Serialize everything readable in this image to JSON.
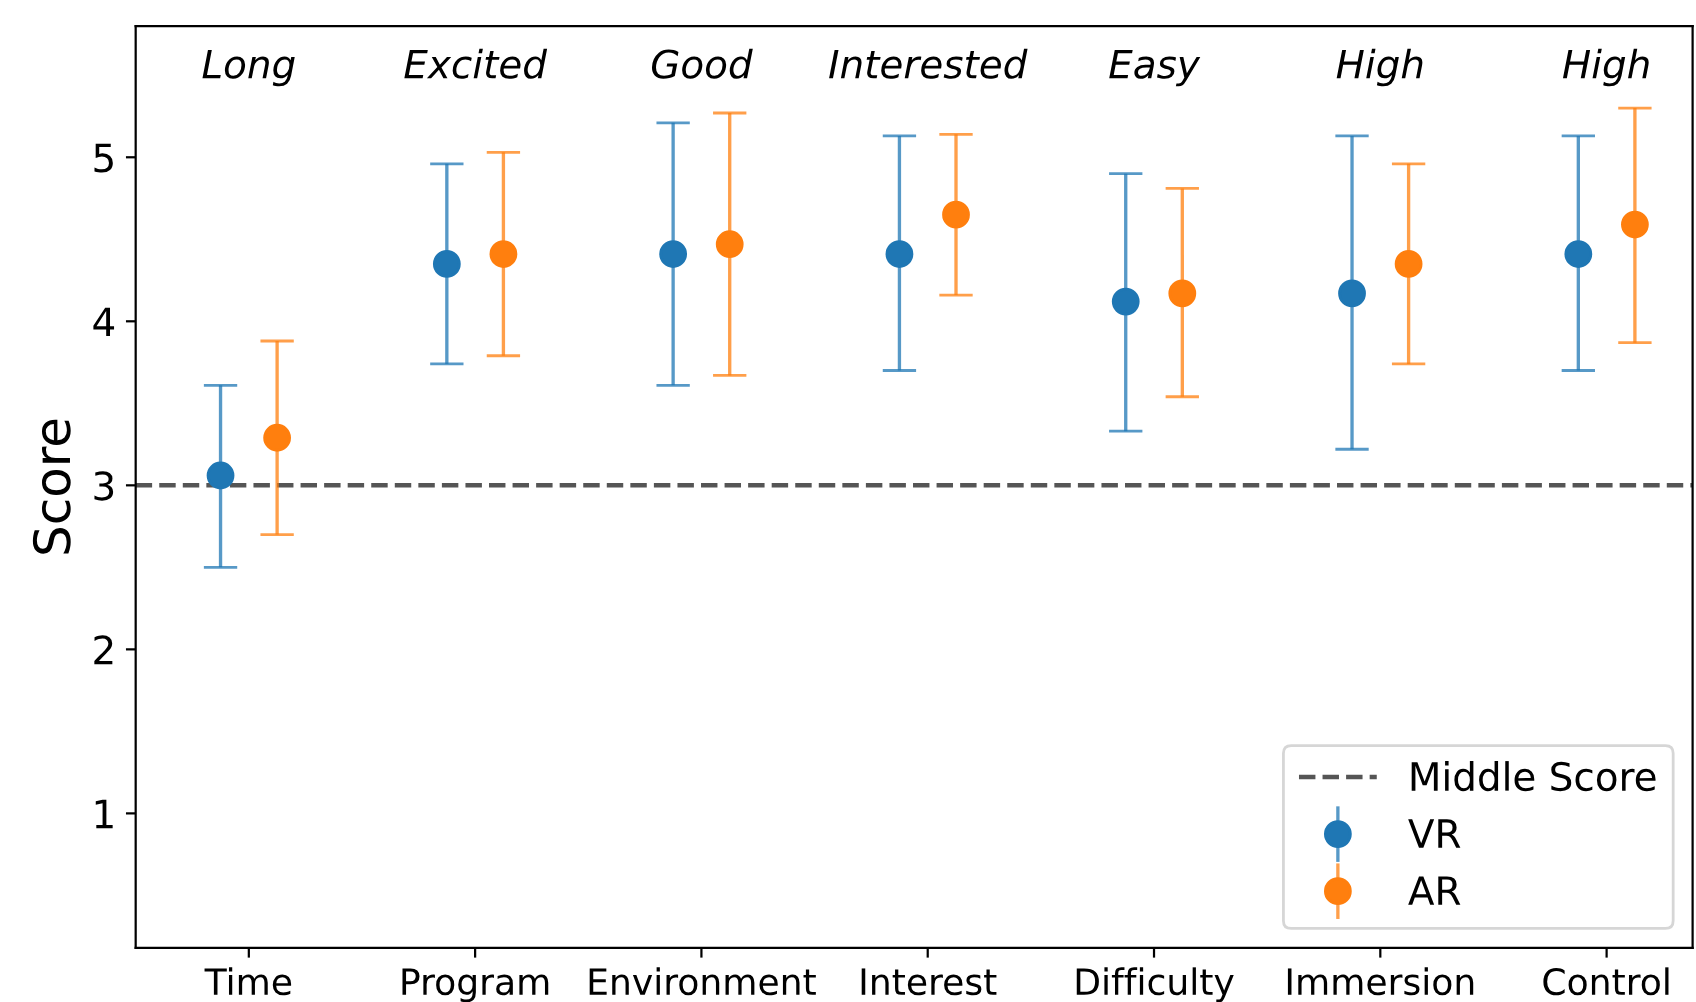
{
  "chart_data": {
    "type": "scatter",
    "ylabel": "Score",
    "categories": [
      "Time",
      "Program",
      "Environment",
      "Interest",
      "Difficulty",
      "Immersion",
      "Control"
    ],
    "series": [
      {
        "name": "VR",
        "color": "#1f77b4",
        "values": [
          3.06,
          4.35,
          4.41,
          4.41,
          4.12,
          4.17,
          4.41
        ],
        "errors": [
          [
            2.5,
            3.61
          ],
          [
            3.74,
            4.96
          ],
          [
            3.61,
            5.21
          ],
          [
            3.7,
            5.13
          ],
          [
            3.33,
            4.9
          ],
          [
            3.22,
            5.13
          ],
          [
            3.7,
            5.13
          ]
        ]
      },
      {
        "name": "AR",
        "color": "#ff7f0e",
        "values": [
          3.29,
          4.41,
          4.47,
          4.65,
          4.17,
          4.35,
          4.59
        ],
        "errors": [
          [
            2.7,
            3.88
          ],
          [
            3.79,
            5.03
          ],
          [
            3.67,
            5.27
          ],
          [
            4.16,
            5.14
          ],
          [
            3.54,
            4.81
          ],
          [
            3.74,
            4.96
          ],
          [
            3.87,
            5.3
          ]
        ]
      }
    ],
    "annotations": [
      "Long",
      "Excited",
      "Good",
      "Interested",
      "Easy",
      "High",
      "High"
    ],
    "ref_lines": [
      {
        "axis": "y",
        "value": 3,
        "label": "Middle Score",
        "color": "#555555",
        "line_style": "dashed"
      }
    ],
    "ylim": [
      0.18,
      5.8
    ],
    "yticks": [
      1,
      2,
      3,
      4,
      5
    ],
    "marker": "circle",
    "legend": "bottom right",
    "grid": false
  }
}
